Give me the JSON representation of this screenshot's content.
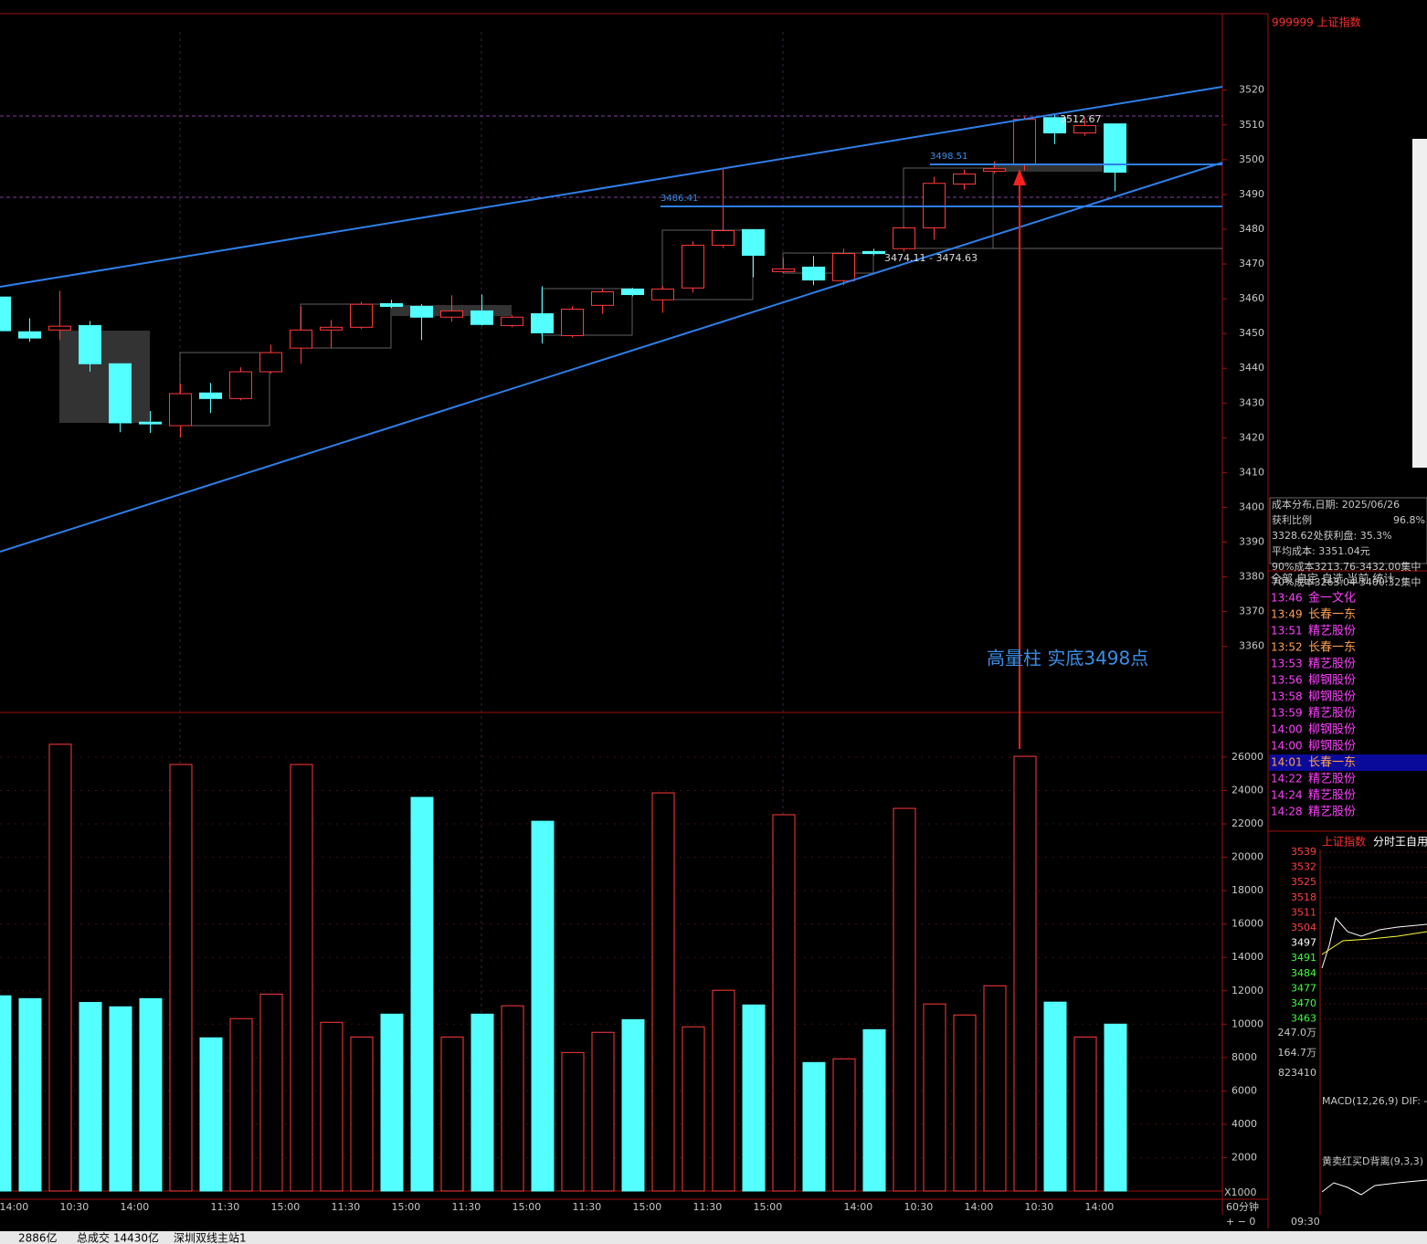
{
  "chart_data": [
    {
      "type": "candlestick",
      "up_color": "#ff3a3a",
      "down_color": "#54ffff",
      "categories": [
        "14:00",
        null,
        "10:30",
        null,
        "14:00",
        null,
        null,
        "11:30",
        null,
        "15:00",
        null,
        "11:30",
        null,
        "15:00",
        null,
        "11:30",
        null,
        "15:00",
        null,
        "11:30",
        null,
        "15:00",
        null,
        "11:30",
        null,
        "15:00",
        null,
        null,
        "14:00",
        null,
        "10:30",
        null,
        "14:00",
        null,
        "10:30",
        null,
        "14:00",
        null
      ],
      "open": [
        3460.5,
        3450.5,
        3451.0,
        3452.3,
        3441.3,
        3424.5,
        3423.5,
        3432.9,
        3431.3,
        3439.0,
        3445.8,
        3451.0,
        3451.8,
        3458.6,
        3457.8,
        3454.7,
        3456.5,
        3452.3,
        3455.7,
        3449.4,
        3458.1,
        3462.8,
        3459.7,
        3463.1,
        3475.4,
        3479.9,
        3467.8,
        3469.1,
        3465.2,
        3473.6,
        3474.4,
        3480.4,
        3493.0,
        3496.7,
        3498.5,
        3512.1,
        3507.7,
        3510.3
      ],
      "high": [
        3462.0,
        3454.4,
        3462.3,
        3453.6,
        3441.3,
        3427.7,
        3435.5,
        3435.8,
        3440.3,
        3446.8,
        3457.8,
        3453.9,
        3459.1,
        3459.7,
        3458.4,
        3461.0,
        3461.2,
        3455.2,
        3463.6,
        3457.8,
        3462.8,
        3463.1,
        3463.6,
        3476.5,
        3497.2,
        3479.9,
        3471.7,
        3472.3,
        3474.4,
        3474.4,
        3480.7,
        3495.1,
        3497.2,
        3499.5,
        3512.4,
        3512.9,
        3512.1,
        3510.3
      ],
      "low": [
        3450.0,
        3447.6,
        3448.1,
        3439.0,
        3421.6,
        3421.4,
        3420.1,
        3427.1,
        3430.8,
        3438.4,
        3441.3,
        3445.8,
        3451.3,
        3457.3,
        3448.1,
        3453.4,
        3452.3,
        3451.8,
        3447.1,
        3448.9,
        3455.7,
        3460.7,
        3456.0,
        3461.8,
        3474.6,
        3466.2,
        3467.3,
        3463.9,
        3463.9,
        3472.5,
        3473.6,
        3477.0,
        3491.4,
        3496.1,
        3496.9,
        3504.5,
        3506.9,
        3490.9
      ],
      "close": [
        3450.8,
        3448.7,
        3452.1,
        3441.3,
        3424.3,
        3424.0,
        3432.7,
        3431.3,
        3439.0,
        3444.5,
        3451.0,
        3451.8,
        3458.4,
        3457.8,
        3454.7,
        3456.5,
        3452.6,
        3454.7,
        3450.2,
        3457.0,
        3462.0,
        3461.2,
        3462.8,
        3475.4,
        3479.6,
        3472.5,
        3468.6,
        3465.4,
        3473.0,
        3473.0,
        3480.4,
        3493.2,
        3495.9,
        3497.4,
        3511.6,
        3507.7,
        3509.8,
        3496.4
      ],
      "ylim": [
        3341,
        3542
      ],
      "yticks": [
        3360,
        3370,
        3380,
        3390,
        3400,
        3410,
        3420,
        3430,
        3440,
        3450,
        3460,
        3470,
        3480,
        3490,
        3500,
        3510,
        3520
      ],
      "annotations": [
        "3486.41",
        "3498.51",
        "3512.67",
        "3474.11 - 3474.63",
        "高量柱  实底3498点"
      ]
    },
    {
      "type": "bar",
      "values": [
        11700,
        11530,
        26770,
        11300,
        11040,
        11530,
        25560,
        9180,
        10330,
        11800,
        25560,
        10110,
        9230,
        10600,
        23590,
        9230,
        10600,
        11100,
        22160,
        8300,
        9510,
        10270,
        23860,
        9840,
        12030,
        11150,
        22550,
        7700,
        7920,
        9670,
        22930,
        11210,
        10550,
        12300,
        26050,
        11320,
        9230,
        10000
      ],
      "ylim": [
        0,
        28680
      ],
      "yticks": [
        2000,
        4000,
        6000,
        8000,
        10000,
        12000,
        14000,
        16000,
        18000,
        20000,
        22000,
        24000,
        26000
      ],
      "unit": "X1000",
      "period": "60分钟"
    }
  ],
  "sidebar": {
    "title": "999999 上证指数",
    "cost_info": [
      "成本分布,日期: 2025/06/26",
      "获利比例",
      "96.8%",
      "3328.62处获利盘: 35.3%",
      "平均成本: 3351.04元",
      "90%成本3213.76-3432.00集中",
      "70%成本3263.04-3400.32集中"
    ],
    "tabs": "全部 自定 自选 当前 统计",
    "trades": [
      {
        "time": "13:46",
        "name": "金一文化",
        "color": "#ff40ff"
      },
      {
        "time": "13:49",
        "name": "长春一东",
        "color": "#ffa050"
      },
      {
        "time": "13:51",
        "name": "精艺股份",
        "color": "#ff40ff"
      },
      {
        "time": "13:52",
        "name": "长春一东",
        "color": "#ffa050"
      },
      {
        "time": "13:53",
        "name": "精艺股份",
        "color": "#ff40ff"
      },
      {
        "time": "13:56",
        "name": "柳钢股份",
        "color": "#ff40ff"
      },
      {
        "time": "13:58",
        "name": "柳钢股份",
        "color": "#ff40ff"
      },
      {
        "time": "13:59",
        "name": "精艺股份",
        "color": "#ff40ff"
      },
      {
        "time": "14:00",
        "name": "柳钢股份",
        "color": "#ff40ff"
      },
      {
        "time": "14:00",
        "name": "柳钢股份",
        "color": "#ff40ff"
      },
      {
        "time": "14:01",
        "name": "长春一东",
        "color": "#ffa050"
      },
      {
        "time": "14:22",
        "name": "精艺股份",
        "color": "#ff40ff"
      },
      {
        "time": "14:24",
        "name": "精艺股份",
        "color": "#ff40ff"
      },
      {
        "time": "14:28",
        "name": "精艺股份",
        "color": "#ff40ff"
      }
    ],
    "mini": {
      "title": "上证指数",
      "subtitle": "分时王自用",
      "price_labels": [
        {
          "text": "3539",
          "color": "#ff4040"
        },
        {
          "text": "3532",
          "color": "#ff4040"
        },
        {
          "text": "3525",
          "color": "#ff4040"
        },
        {
          "text": "3518",
          "color": "#ff4040"
        },
        {
          "text": "3511",
          "color": "#ff4040"
        },
        {
          "text": "3504",
          "color": "#ff4040"
        },
        {
          "text": "3497",
          "color": "#ffffff"
        },
        {
          "text": "3491",
          "color": "#40ff40"
        },
        {
          "text": "3484",
          "color": "#40ff40"
        },
        {
          "text": "3477",
          "color": "#40ff40"
        },
        {
          "text": "3470",
          "color": "#40ff40"
        },
        {
          "text": "3463",
          "color": "#40ff40"
        }
      ],
      "volume_labels": [
        "247.0万",
        "164.7万",
        "823410"
      ],
      "macd": "MACD(12,26,9)  DIF: -",
      "kdj": "黄卖红买D背离(9,3,3)",
      "time": "09:30"
    }
  },
  "status_bar": [
    "2886亿",
    "总成交 14430亿",
    "深圳双线主站1"
  ]
}
